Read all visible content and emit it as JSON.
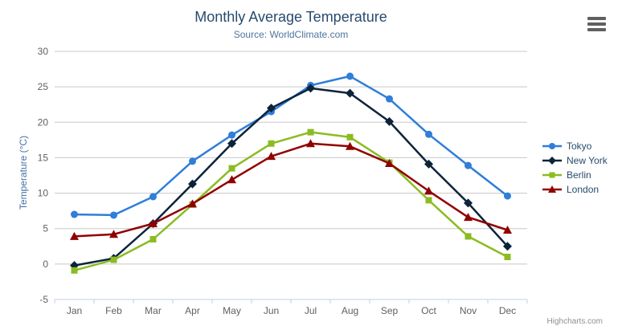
{
  "credits": "Highcharts.com",
  "export_menu": {
    "icon": "hamburger-icon"
  },
  "palette": {
    "title_color": "#274b6d",
    "subtitle_color": "#4d759e",
    "yaxis_title_color": "#4572a7",
    "tick_label_color": "#606060",
    "gridline_color": "#c8c8c8",
    "axis_line_color": "#c0d0e0",
    "legend_text_color": "#274b6d",
    "credits_color": "#909090"
  },
  "chart_data": {
    "type": "line",
    "title": "Monthly Average Temperature",
    "subtitle": "Source: WorldClimate.com",
    "xlabel": "",
    "ylabel": "Temperature (°C)",
    "ylim": [
      -5,
      30
    ],
    "yticks": [
      -5,
      0,
      5,
      10,
      15,
      20,
      25,
      30
    ],
    "grid": true,
    "legend_position": "right",
    "categories": [
      "Jan",
      "Feb",
      "Mar",
      "Apr",
      "May",
      "Jun",
      "Jul",
      "Aug",
      "Sep",
      "Oct",
      "Nov",
      "Dec"
    ],
    "series": [
      {
        "name": "Tokyo",
        "color": "#2f7ed8",
        "marker": "circle",
        "values": [
          7.0,
          6.9,
          9.5,
          14.5,
          18.2,
          21.5,
          25.2,
          26.5,
          23.3,
          18.3,
          13.9,
          9.6
        ]
      },
      {
        "name": "New York",
        "color": "#0d233a",
        "marker": "diamond",
        "values": [
          -0.2,
          0.8,
          5.7,
          11.3,
          17.0,
          22.0,
          24.8,
          24.1,
          20.1,
          14.1,
          8.6,
          2.5
        ]
      },
      {
        "name": "Berlin",
        "color": "#8bbc21",
        "marker": "square",
        "values": [
          -0.9,
          0.6,
          3.5,
          8.4,
          13.5,
          17.0,
          18.6,
          17.9,
          14.3,
          9.0,
          3.9,
          1.0
        ]
      },
      {
        "name": "London",
        "color": "#910000",
        "marker": "triangle",
        "values": [
          3.9,
          4.2,
          5.7,
          8.5,
          11.9,
          15.2,
          17.0,
          16.6,
          14.2,
          10.3,
          6.6,
          4.8
        ]
      }
    ]
  }
}
